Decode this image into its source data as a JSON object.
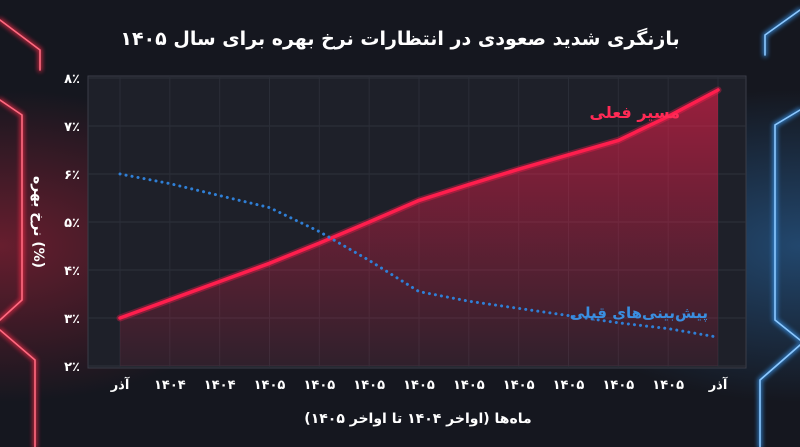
{
  "chart_data": {
    "type": "line",
    "title": "بازنگری شدید صعودی در انتظارات نرخ بهره برای سال ۱۴۰۵",
    "xlabel": "ماه‌ها (اواخر ۱۴۰۴ تا اواخر ۱۴۰۵)",
    "ylabel": "نرخ بهره (%)",
    "categories": [
      "آذر",
      "۱۴۰۴",
      "۱۴۰۴",
      "۱۴۰۵",
      "۱۴۰۵",
      "۱۴۰۵",
      "۱۴۰۵",
      "۱۴۰۵",
      "۱۴۰۵",
      "۱۴۰۵",
      "۱۴۰۵",
      "۱۴۰۵",
      "آذر"
    ],
    "yticks": [
      {
        "value": 2,
        "label": "۲٪"
      },
      {
        "value": 3,
        "label": "۳٪"
      },
      {
        "value": 4,
        "label": "۴٪"
      },
      {
        "value": 5,
        "label": "۵٪"
      },
      {
        "value": 6,
        "label": "۶٪"
      },
      {
        "value": 7,
        "label": "۷٪"
      },
      {
        "value": 8,
        "label": "۸٪"
      }
    ],
    "ylim": [
      2,
      8
    ],
    "grid": true,
    "series": [
      {
        "name": "مسیر فعلی",
        "style": "solid",
        "color": "#ff1e4d",
        "values": [
          3.0,
          3.38,
          3.76,
          4.14,
          4.56,
          5.0,
          5.45,
          5.78,
          6.1,
          6.4,
          6.7,
          7.2,
          7.75
        ]
      },
      {
        "name": "پیش‌بینی‌های قبلی",
        "style": "dotted",
        "color": "#2f7fd6",
        "values": [
          6.0,
          5.8,
          5.55,
          5.3,
          4.8,
          4.2,
          3.55,
          3.35,
          3.2,
          3.05,
          2.9,
          2.78,
          2.6
        ]
      }
    ]
  },
  "colors": {
    "background": "#15171f",
    "plot_background": "#1e2029",
    "axis_text": "#ffffff",
    "neon_left": "#ff2a4a",
    "neon_right": "#3aa0ff"
  }
}
